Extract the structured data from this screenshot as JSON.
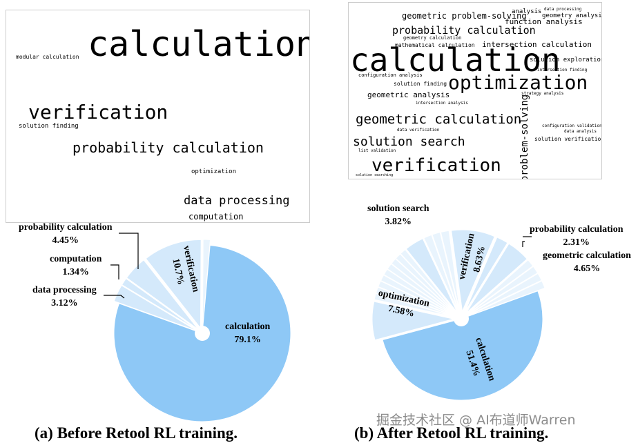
{
  "wordclouds": [
    {
      "words": [
        {
          "text": "calculation",
          "color": "#2f6a8c"
        },
        {
          "text": "modular calculation",
          "color": "#44b07a"
        },
        {
          "text": "verification",
          "color": "#2e6e8e"
        },
        {
          "text": "solution finding",
          "color": "#3a7a8f"
        },
        {
          "text": "probability calculation",
          "color": "#2a7d8a"
        },
        {
          "text": "optimization",
          "color": "#3b8a9a"
        },
        {
          "text": "data processing",
          "color": "#2b6f8a"
        },
        {
          "text": "computation",
          "color": "#5cbf78"
        }
      ]
    },
    {
      "words": [
        {
          "text": "calculation",
          "color": "#3b2f78"
        },
        {
          "text": "optimization",
          "color": "#d8d62a"
        },
        {
          "text": "probability calculation",
          "color": "#2a9d8a"
        },
        {
          "text": "geometric problem-solving",
          "color": "#3e3d80"
        },
        {
          "text": "function analysis",
          "color": "#c9d740"
        },
        {
          "text": "intersection calculation",
          "color": "#6cbf8a"
        },
        {
          "text": "geometry calculation",
          "color": "#4b4a8a"
        },
        {
          "text": "mathematical calculation",
          "color": "#3f6b8f"
        },
        {
          "text": "analysis",
          "color": "#8fcc6f"
        },
        {
          "text": "geometry analysis",
          "color": "#b5d44b"
        },
        {
          "text": "data processing",
          "color": "#5a9a7a"
        },
        {
          "text": "solution exploration",
          "color": "#3b5f8f"
        },
        {
          "text": "intersection finding",
          "color": "#3e5a90"
        },
        {
          "text": "configuration analysis",
          "color": "#b9d24a"
        },
        {
          "text": "solution finding",
          "color": "#4a4a88"
        },
        {
          "text": "geometric analysis",
          "color": "#3b3b80"
        },
        {
          "text": "strategy analysis",
          "color": "#4a6a8a"
        },
        {
          "text": "intersection analysis",
          "color": "#3d5f8f"
        },
        {
          "text": "geometric calculation",
          "color": "#3b3b7d"
        },
        {
          "text": "solution search",
          "color": "#3f2f6f"
        },
        {
          "text": "data verification",
          "color": "#3e4a88"
        },
        {
          "text": "list validation",
          "color": "#4a4a88"
        },
        {
          "text": "verification",
          "color": "#2aa07a"
        },
        {
          "text": "problem-solving",
          "color": "#4cb57a"
        },
        {
          "text": "configuration validation",
          "color": "#3b4f85"
        },
        {
          "text": "data analysis",
          "color": "#3e5a90"
        },
        {
          "text": "solution verification",
          "color": "#2b8f8f"
        },
        {
          "text": "solution searching",
          "color": "#3b4f85"
        }
      ]
    }
  ],
  "chart_data": [
    {
      "type": "pie",
      "title": "(a) Before Retool RL training.",
      "slices": [
        {
          "label": "calculation",
          "value": 79.1,
          "pct": "79.1%"
        },
        {
          "label": "data processing",
          "value": 3.12,
          "pct": "3.12%"
        },
        {
          "label": "computation",
          "value": 1.34,
          "pct": "1.34%"
        },
        {
          "label": "probability calculation",
          "value": 4.45,
          "pct": "4.45%"
        },
        {
          "label": "verification",
          "value": 10.7,
          "pct": "10.7%"
        },
        {
          "label": "",
          "value": 1.29,
          "pct": ""
        }
      ]
    },
    {
      "type": "pie",
      "title": "(b) After Retool RL training.",
      "slices": [
        {
          "label": "calculation",
          "value": 51.4,
          "pct": "51.4%"
        },
        {
          "label": "optimization",
          "value": 7.58,
          "pct": "7.58%"
        },
        {
          "label": "",
          "value": 1.2
        },
        {
          "label": "",
          "value": 1.2
        },
        {
          "label": "",
          "value": 1.2
        },
        {
          "label": "",
          "value": 1.2
        },
        {
          "label": "",
          "value": 1.2
        },
        {
          "label": "",
          "value": 1.2
        },
        {
          "label": "",
          "value": 1.2
        },
        {
          "label": "",
          "value": 1.2
        },
        {
          "label": "",
          "value": 1.2
        },
        {
          "label": "solution search",
          "value": 3.82,
          "pct": "3.82%"
        },
        {
          "label": "",
          "value": 1.6
        },
        {
          "label": "",
          "value": 1.6
        },
        {
          "label": "",
          "value": 1.61
        },
        {
          "label": "verification",
          "value": 8.63,
          "pct": "8.63%"
        },
        {
          "label": "probability calculation",
          "value": 2.31,
          "pct": "2.31%"
        },
        {
          "label": "geometric calculation",
          "value": 4.65,
          "pct": "4.65%"
        },
        {
          "label": "",
          "value": 1.5
        },
        {
          "label": "",
          "value": 1.5
        },
        {
          "label": "",
          "value": 1.5
        },
        {
          "label": "",
          "value": 1.5
        }
      ]
    }
  ],
  "colors": {
    "main": "#8ec8f6",
    "light": "#d4e9fb",
    "lighter": "#e9f4fd",
    "edge": "#ffffff"
  },
  "watermark": "掘金技术社区 @ AI布道师Warren"
}
